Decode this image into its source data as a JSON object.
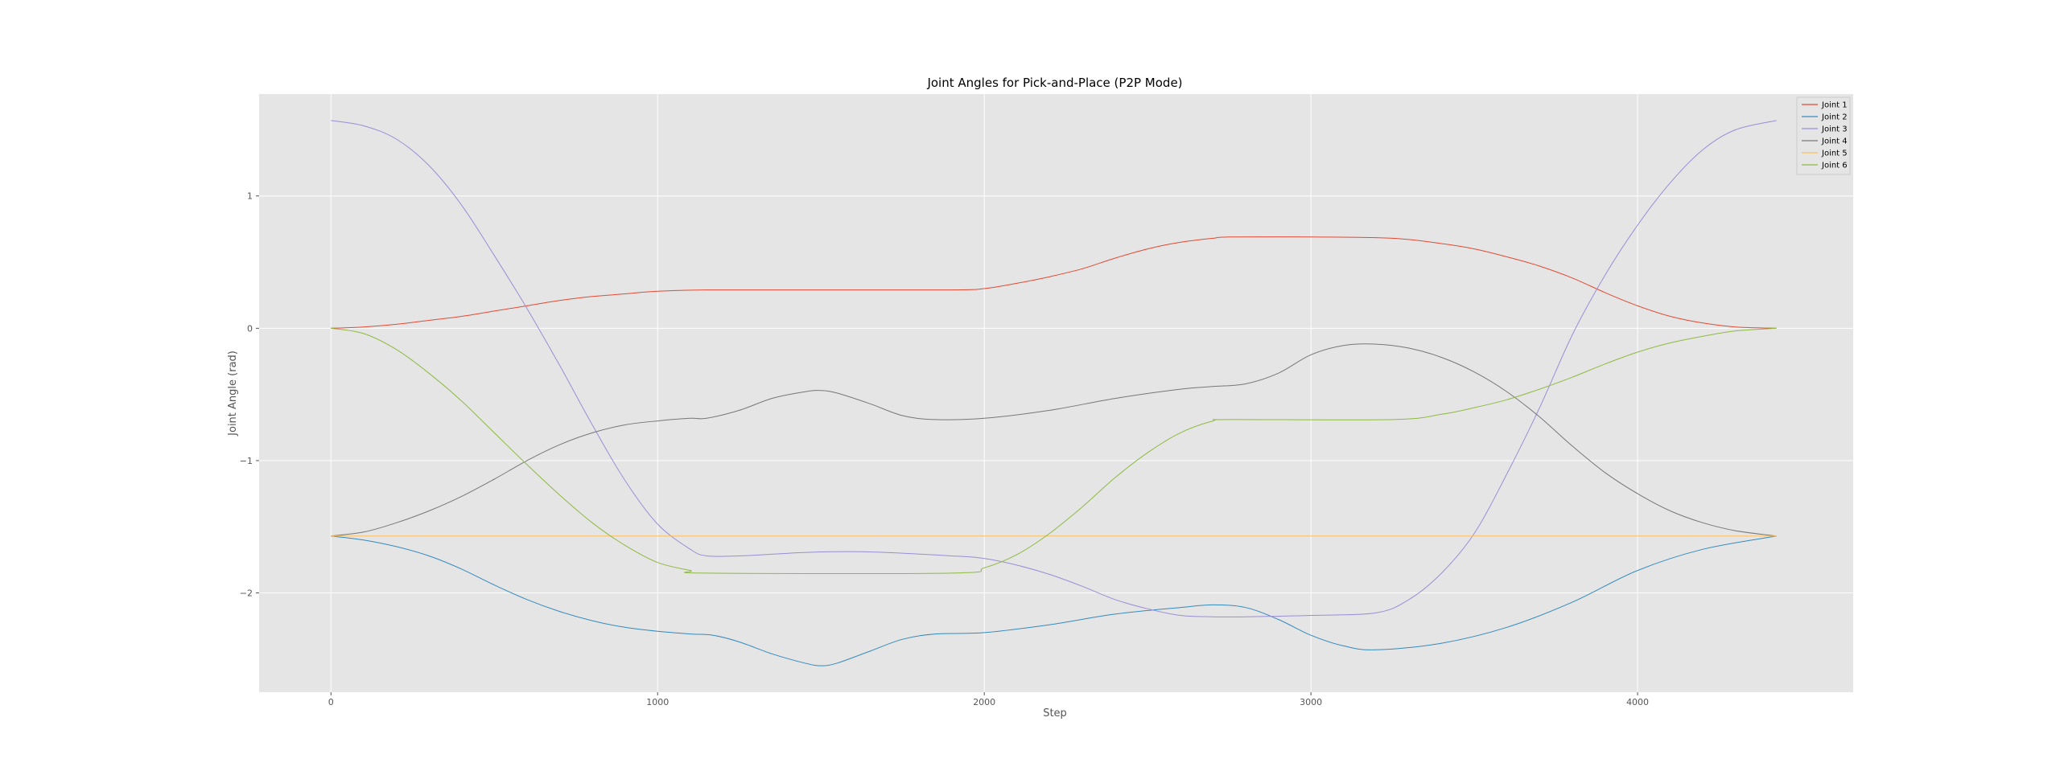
{
  "chart_data": {
    "type": "line",
    "title": "Joint Angles for Pick-and-Place (P2P Mode)",
    "xlabel": "Step",
    "ylabel": "Joint Angle (rad)",
    "xlim": [
      -220,
      4660
    ],
    "ylim": [
      -2.75,
      1.77
    ],
    "xticks": [
      0,
      1000,
      2000,
      3000,
      4000
    ],
    "yticks": [
      1,
      0,
      -1,
      -2
    ],
    "ytick_labels": [
      "1",
      "0",
      "−1",
      "−2"
    ],
    "grid": true,
    "legend_position": "top-right",
    "colors": {
      "plot_background": "#e5e5e5",
      "grid": "#ffffff"
    },
    "series": [
      {
        "name": "Joint 1",
        "color": "#E24A33",
        "x": [
          0,
          100,
          200,
          300,
          400,
          500,
          600,
          700,
          800,
          900,
          1000,
          1150,
          1500,
          1900,
          2000,
          2100,
          2200,
          2300,
          2400,
          2500,
          2600,
          2700,
          2750,
          3000,
          3250,
          3400,
          3500,
          3600,
          3700,
          3800,
          3900,
          4000,
          4100,
          4200,
          4300,
          4425
        ],
        "y": [
          0,
          0.01,
          0.03,
          0.06,
          0.09,
          0.13,
          0.17,
          0.21,
          0.24,
          0.26,
          0.28,
          0.29,
          0.29,
          0.29,
          0.3,
          0.34,
          0.39,
          0.45,
          0.53,
          0.6,
          0.65,
          0.68,
          0.69,
          0.69,
          0.68,
          0.64,
          0.6,
          0.54,
          0.47,
          0.38,
          0.27,
          0.17,
          0.09,
          0.04,
          0.01,
          0
        ]
      },
      {
        "name": "Joint 2",
        "color": "#348ABD",
        "x": [
          0,
          100,
          200,
          300,
          400,
          500,
          600,
          700,
          800,
          900,
          1000,
          1100,
          1170,
          1250,
          1350,
          1450,
          1500,
          1550,
          1650,
          1750,
          1850,
          2000,
          2200,
          2400,
          2600,
          2700,
          2800,
          2900,
          3000,
          3100,
          3200,
          3400,
          3600,
          3800,
          4000,
          4200,
          4425
        ],
        "y": [
          -1.57,
          -1.6,
          -1.65,
          -1.72,
          -1.82,
          -1.94,
          -2.05,
          -2.14,
          -2.21,
          -2.26,
          -2.29,
          -2.31,
          -2.32,
          -2.37,
          -2.46,
          -2.53,
          -2.55,
          -2.53,
          -2.44,
          -2.35,
          -2.31,
          -2.3,
          -2.24,
          -2.16,
          -2.11,
          -2.09,
          -2.11,
          -2.2,
          -2.32,
          -2.4,
          -2.43,
          -2.38,
          -2.26,
          -2.07,
          -1.83,
          -1.67,
          -1.57
        ]
      },
      {
        "name": "Joint 3",
        "color": "#988ED5",
        "x": [
          0,
          100,
          200,
          300,
          400,
          500,
          600,
          700,
          800,
          900,
          1000,
          1100,
          1150,
          1250,
          1400,
          1500,
          1650,
          1900,
          2000,
          2100,
          2200,
          2300,
          2400,
          2500,
          2600,
          2700,
          2800,
          3000,
          3200,
          3300,
          3400,
          3500,
          3600,
          3700,
          3800,
          3900,
          4000,
          4100,
          4200,
          4300,
          4425
        ],
        "y": [
          1.57,
          1.53,
          1.43,
          1.23,
          0.93,
          0.55,
          0.15,
          -0.28,
          -0.73,
          -1.15,
          -1.48,
          -1.67,
          -1.72,
          -1.72,
          -1.7,
          -1.69,
          -1.69,
          -1.72,
          -1.74,
          -1.79,
          -1.86,
          -1.95,
          -2.05,
          -2.12,
          -2.17,
          -2.18,
          -2.18,
          -2.17,
          -2.15,
          -2.05,
          -1.85,
          -1.55,
          -1.1,
          -0.6,
          -0.05,
          0.4,
          0.78,
          1.1,
          1.35,
          1.5,
          1.57
        ]
      },
      {
        "name": "Joint 4",
        "color": "#777777",
        "x": [
          0,
          100,
          200,
          300,
          400,
          500,
          600,
          700,
          800,
          900,
          1000,
          1100,
          1150,
          1250,
          1350,
          1450,
          1500,
          1550,
          1650,
          1750,
          1850,
          2000,
          2200,
          2400,
          2600,
          2700,
          2800,
          2900,
          3000,
          3100,
          3200,
          3300,
          3400,
          3500,
          3600,
          3700,
          3800,
          3900,
          4000,
          4100,
          4200,
          4300,
          4425
        ],
        "y": [
          -1.57,
          -1.54,
          -1.47,
          -1.38,
          -1.27,
          -1.14,
          -1,
          -0.88,
          -0.79,
          -0.73,
          -0.7,
          -0.68,
          -0.68,
          -0.62,
          -0.53,
          -0.48,
          -0.47,
          -0.49,
          -0.57,
          -0.66,
          -0.69,
          -0.68,
          -0.62,
          -0.53,
          -0.46,
          -0.44,
          -0.42,
          -0.34,
          -0.2,
          -0.13,
          -0.12,
          -0.15,
          -0.22,
          -0.33,
          -0.48,
          -0.67,
          -0.89,
          -1.09,
          -1.25,
          -1.38,
          -1.47,
          -1.53,
          -1.57
        ]
      },
      {
        "name": "Joint 5",
        "color": "#FBC15E",
        "x": [
          0,
          4425
        ],
        "y": [
          -1.57,
          -1.57
        ]
      },
      {
        "name": "Joint 6",
        "color": "#8EBA42",
        "x": [
          0,
          100,
          200,
          300,
          400,
          500,
          600,
          700,
          800,
          900,
          1000,
          1100,
          1150,
          1900,
          2000,
          2100,
          2200,
          2300,
          2400,
          2500,
          2600,
          2700,
          2750,
          3250,
          3400,
          3500,
          3600,
          3700,
          3800,
          3900,
          4000,
          4100,
          4200,
          4300,
          4425
        ],
        "y": [
          0,
          -0.04,
          -0.16,
          -0.34,
          -0.55,
          -0.79,
          -1.03,
          -1.26,
          -1.47,
          -1.64,
          -1.77,
          -1.83,
          -1.85,
          -1.85,
          -1.81,
          -1.71,
          -1.55,
          -1.35,
          -1.13,
          -0.94,
          -0.79,
          -0.7,
          -0.69,
          -0.69,
          -0.65,
          -0.6,
          -0.54,
          -0.46,
          -0.37,
          -0.27,
          -0.18,
          -0.11,
          -0.06,
          -0.02,
          0
        ]
      }
    ]
  }
}
